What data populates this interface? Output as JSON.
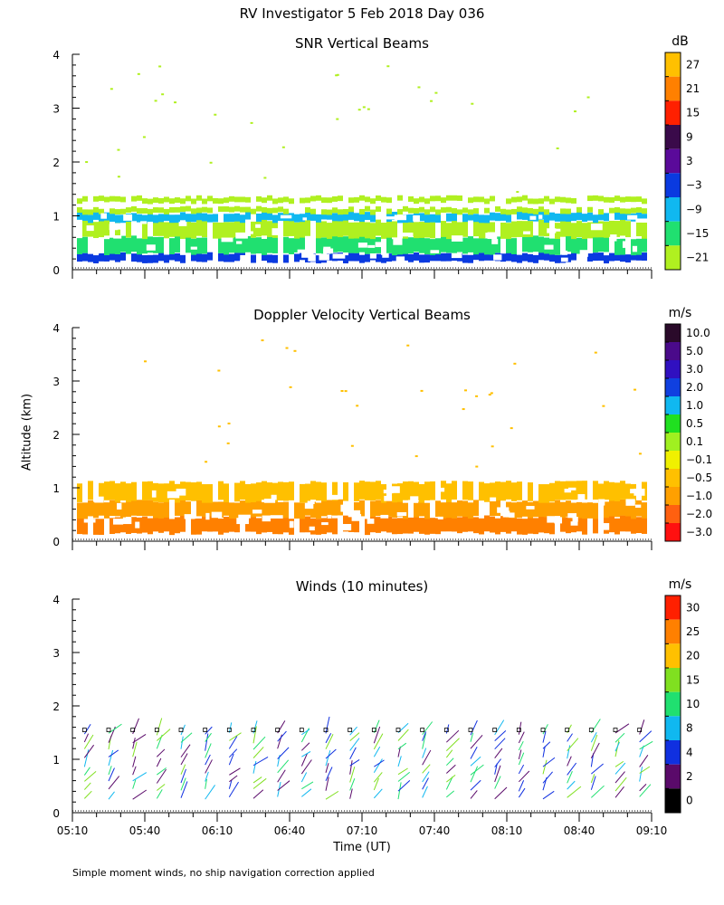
{
  "header": {
    "title": "RV Investigator   5 Feb 2018 Day 036",
    "footnote": "Simple moment winds, no ship navigation correction applied",
    "y_label": "Altitude (km)",
    "x_label": "Time (UT)"
  },
  "chart_data": [
    {
      "type": "heatmap",
      "title": "SNR Vertical Beams",
      "ylabel": "Altitude (km)",
      "xlabel": "Time (UT)",
      "x_ticks": [
        "05:10",
        "05:40",
        "06:10",
        "06:40",
        "07:10",
        "07:40",
        "08:10",
        "08:40",
        "09:10"
      ],
      "y_ticks": [
        "0",
        "1",
        "2",
        "3",
        "4"
      ],
      "ylim": [
        0,
        4
      ],
      "xlim_minutes": [
        0,
        240
      ],
      "colorbar": {
        "unit": "dB",
        "labels": [
          "27",
          "21",
          "15",
          "9",
          "3",
          "−3",
          "−9",
          "−15",
          "−21"
        ],
        "colors": [
          "#ffc000",
          "#ff8000",
          "#ff2000",
          "#3a0a4a",
          "#5a0a9a",
          "#0a3ae0",
          "#10b8f0",
          "#20e070",
          "#b0f020"
        ]
      },
      "layers": [
        {
          "from_km": 0.15,
          "to_km": 0.3,
          "color": "#0a3ae0"
        },
        {
          "from_km": 0.3,
          "to_km": 0.6,
          "color": "#20e070"
        },
        {
          "from_km": 0.6,
          "to_km": 0.9,
          "color": "#b0f020"
        },
        {
          "from_km": 0.9,
          "to_km": 1.05,
          "color": "#10b8f0"
        },
        {
          "from_km": 1.05,
          "to_km": 1.15,
          "color": "#b0f020"
        },
        {
          "from_km": 1.25,
          "to_km": 1.35,
          "color": "#b0f020"
        }
      ]
    },
    {
      "type": "heatmap",
      "title": "Doppler Velocity Vertical Beams",
      "ylabel": "Altitude (km)",
      "xlabel": "Time (UT)",
      "x_ticks": [
        "05:10",
        "05:40",
        "06:10",
        "06:40",
        "07:10",
        "07:40",
        "08:10",
        "08:40",
        "09:10"
      ],
      "y_ticks": [
        "0",
        "1",
        "2",
        "3",
        "4"
      ],
      "ylim": [
        0,
        4
      ],
      "xlim_minutes": [
        0,
        240
      ],
      "colorbar": {
        "unit": "m/s",
        "labels": [
          "10.0",
          "5.0",
          "3.0",
          "2.0",
          "1.0",
          "0.5",
          "0.1",
          "−0.1",
          "−0.5",
          "−1.0",
          "−2.0",
          "−3.0"
        ],
        "colors": [
          "#2a0a2a",
          "#4a0a8a",
          "#3010c0",
          "#1040e0",
          "#10b8f0",
          "#20e020",
          "#a0f020",
          "#f0f000",
          "#ffc000",
          "#ffa000",
          "#ff6010",
          "#ff1010"
        ]
      },
      "layers": [
        {
          "from_km": 0.15,
          "to_km": 0.45,
          "color": "#ff8000"
        },
        {
          "from_km": 0.45,
          "to_km": 0.75,
          "color": "#ffa000"
        },
        {
          "from_km": 0.75,
          "to_km": 1.1,
          "color": "#ffc000"
        }
      ]
    },
    {
      "type": "wind_barbs",
      "title": "Winds (10 minutes)",
      "ylabel": "Altitude (km)",
      "xlabel": "Time (UT)",
      "x_ticks": [
        "05:10",
        "05:40",
        "06:10",
        "06:40",
        "07:10",
        "07:40",
        "08:10",
        "08:40",
        "09:10"
      ],
      "y_ticks": [
        "0",
        "1",
        "2",
        "3",
        "4"
      ],
      "ylim": [
        0,
        4
      ],
      "xlim_minutes": [
        0,
        240
      ],
      "profile_times_minutes": [
        5,
        15,
        25,
        35,
        45,
        55,
        65,
        75,
        85,
        95,
        105,
        115,
        125,
        135,
        145,
        155,
        165,
        175,
        185,
        195,
        205,
        215,
        225,
        235
      ],
      "colorbar": {
        "unit": "m/s",
        "labels": [
          "30",
          "25",
          "20",
          "15",
          "10",
          "8",
          "4",
          "2",
          "0"
        ],
        "colors": [
          "#ff2000",
          "#ff8000",
          "#ffc000",
          "#80e020",
          "#20e070",
          "#10b8f0",
          "#1030e0",
          "#5a0a6a",
          "#000000"
        ]
      }
    }
  ]
}
